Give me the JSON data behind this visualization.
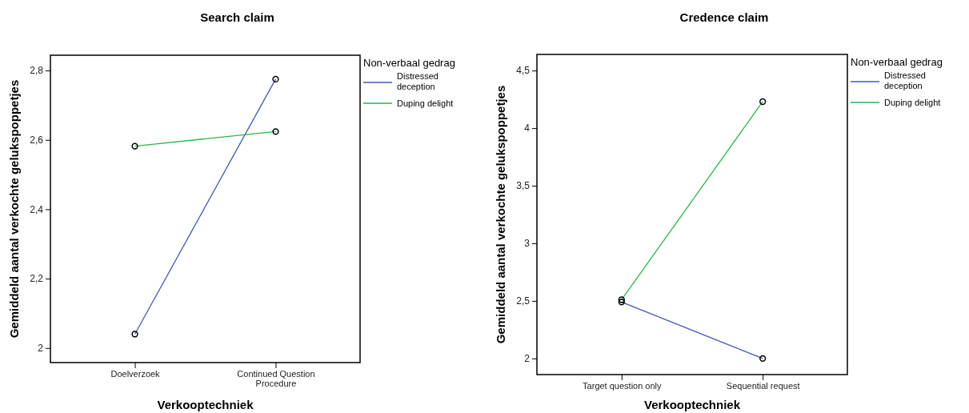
{
  "chart_data": [
    {
      "type": "line",
      "title": "Search claim",
      "xlabel": "Verkooptechniek",
      "ylabel": "Gemiddeld aantal verkochte gelukspoppetjes",
      "legend_title": "Non-verbaal gedrag",
      "categories": [
        "Doelverzoek",
        "Continued Question Procedure"
      ],
      "series": [
        {
          "name": "Distressed deception",
          "color": "#4459b8",
          "values": [
            2.04,
            2.775
          ]
        },
        {
          "name": "Duping delight",
          "color": "#2db54a",
          "values": [
            2.582,
            2.624
          ]
        }
      ],
      "ylim": [
        1.958,
        2.844
      ],
      "yticks": [
        {
          "value": 2,
          "label": "2"
        },
        {
          "value": 2.2,
          "label": "2,2"
        },
        {
          "value": 2.4,
          "label": "2,4"
        },
        {
          "value": 2.6,
          "label": "2,6"
        },
        {
          "value": 2.8,
          "label": "2,8"
        }
      ],
      "legend": "top right",
      "marker": "circle",
      "grid": false
    },
    {
      "type": "line",
      "title": "Credence claim",
      "xlabel": "Verkooptechniek",
      "ylabel": "Gemiddeld aantal verkochte gelukspoppetjes",
      "legend_title": "Non-verbaal gedrag",
      "categories": [
        "Target question only",
        "Sequential request"
      ],
      "series": [
        {
          "name": "Distressed deception",
          "color": "#4459b8",
          "values": [
            2.49,
            2.0
          ]
        },
        {
          "name": "Duping delight",
          "color": "#2db54a",
          "values": [
            2.51,
            4.23
          ]
        }
      ],
      "ylim": [
        1.86,
        4.64
      ],
      "yticks": [
        {
          "value": 2,
          "label": "2"
        },
        {
          "value": 2.5,
          "label": "2,5"
        },
        {
          "value": 3,
          "label": "3"
        },
        {
          "value": 3.5,
          "label": "3,5"
        },
        {
          "value": 4,
          "label": "4"
        },
        {
          "value": 4.5,
          "label": "4,5"
        }
      ],
      "legend": "top right",
      "marker": "circle",
      "grid": false
    }
  ]
}
